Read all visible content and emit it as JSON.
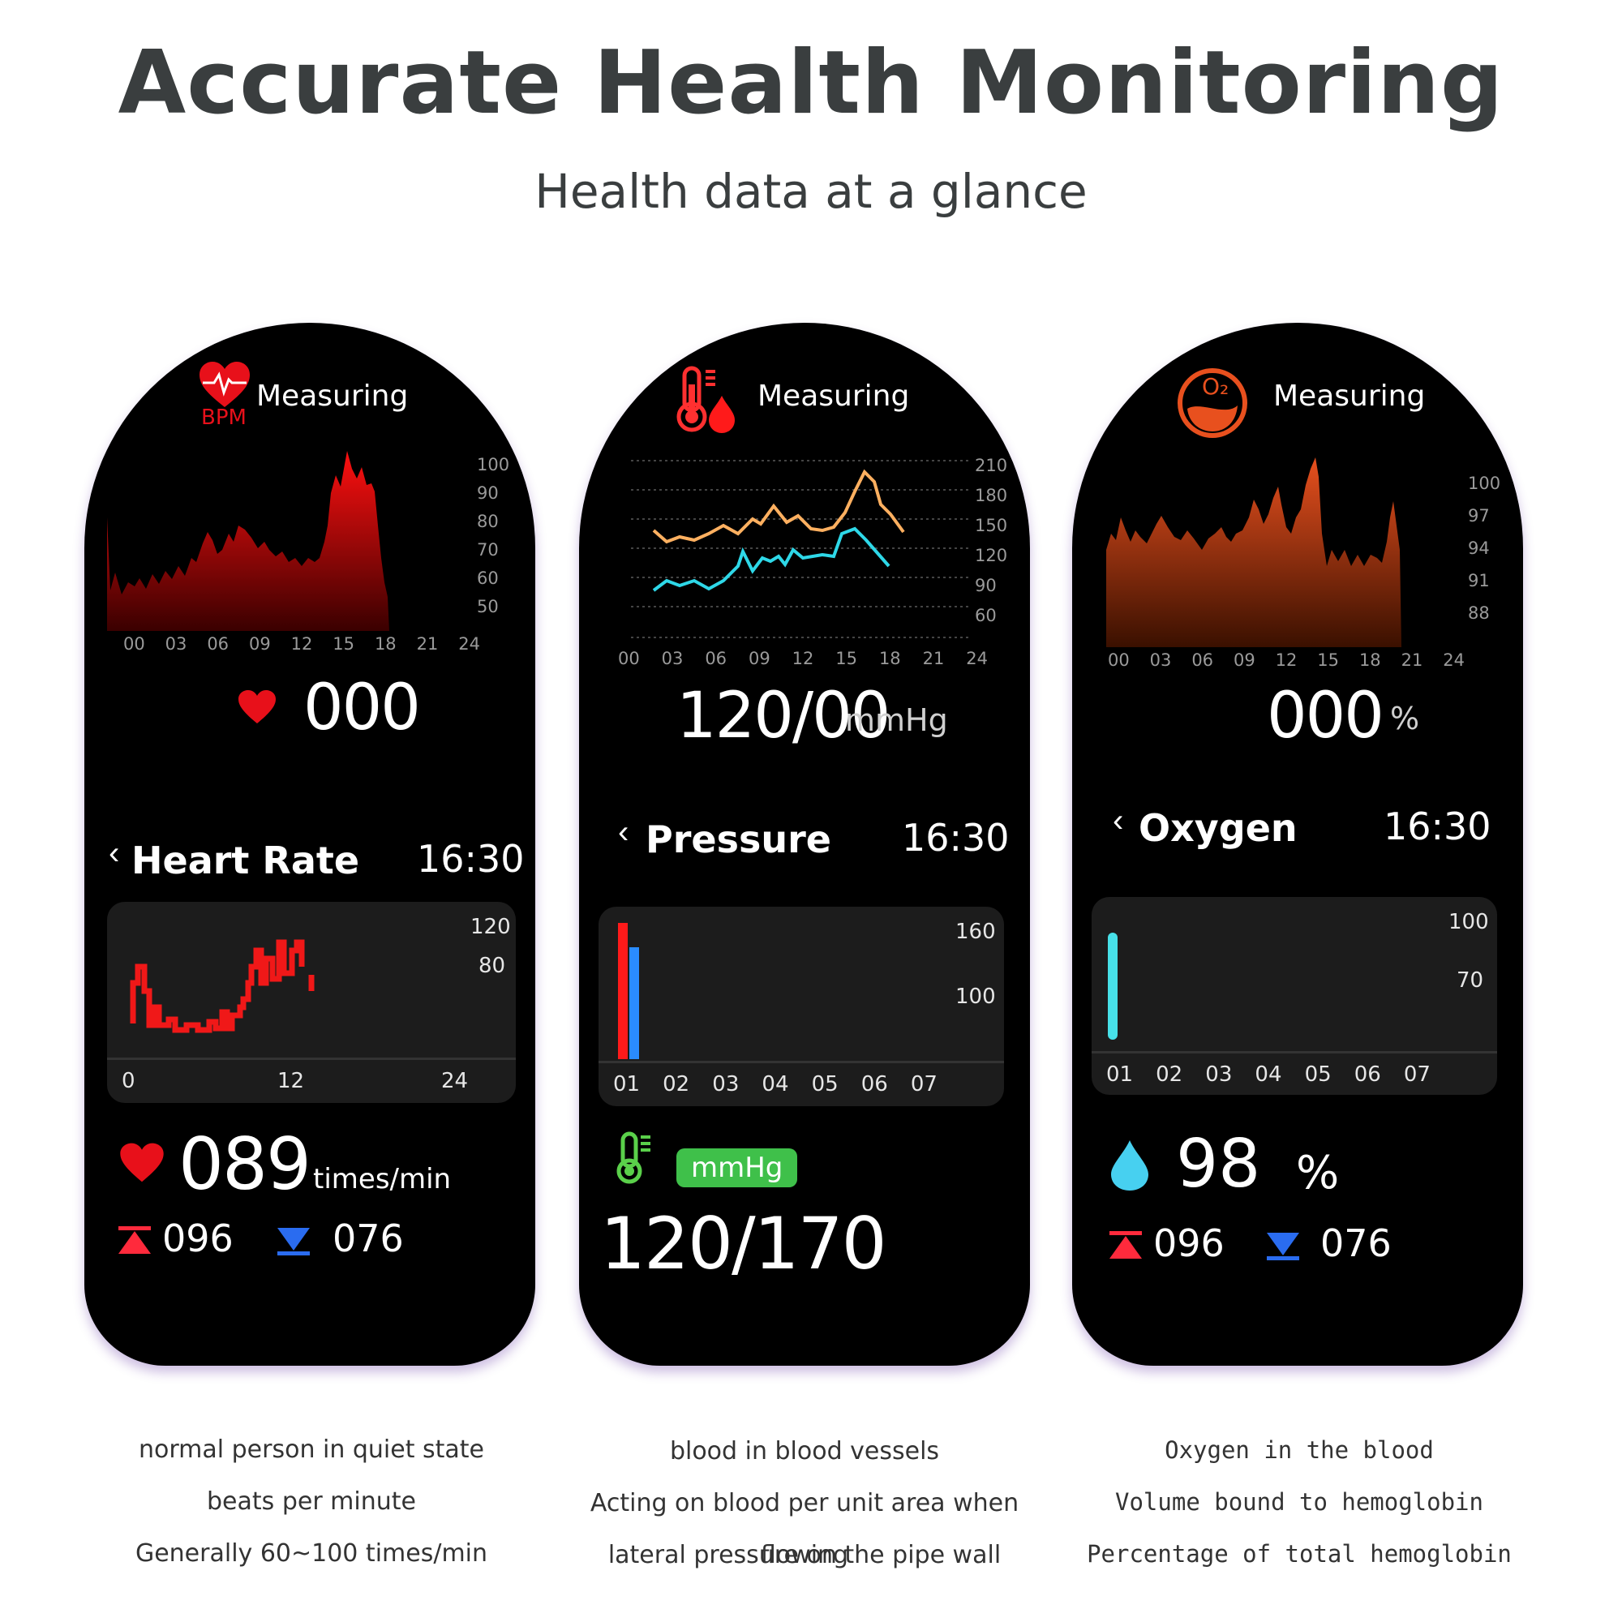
{
  "header": {
    "title": "Accurate Health Monitoring",
    "subtitle": "Health data at a glance"
  },
  "colors": {
    "heart_red": "#e8101a",
    "bp_systolic": "#ffb060",
    "bp_diastolic": "#2ed8e8",
    "oxygen_orange": "#e8501e",
    "oxygen_bar": "#47e0e8",
    "badge_green": "#3fc04a",
    "high_arrow": "#ff2a3c",
    "low_arrow": "#2a6cf0"
  },
  "heart": {
    "measuring": "Measuring",
    "icon": "heart-bpm-icon",
    "icon_text": "BPM",
    "chart_ticks_y": [
      "100",
      "90",
      "80",
      "70",
      "60",
      "50"
    ],
    "chart_ticks_x": [
      "00",
      "03",
      "06",
      "09",
      "12",
      "15",
      "18",
      "21",
      "24"
    ],
    "reading": "000",
    "back_icon": "chevron-left-icon",
    "page_title": "Heart Rate",
    "time": "16:30",
    "card_ticks_y": [
      "120",
      "80"
    ],
    "card_ticks_x": [
      "0",
      "12",
      "24"
    ],
    "value": "089",
    "unit": "times/min",
    "high": "096",
    "low": "076",
    "caption": [
      "normal person in quiet state",
      "beats per minute",
      "Generally 60~100 times/min"
    ]
  },
  "pressure": {
    "measuring": "Measuring",
    "icon": "thermometer-drop-icon",
    "chart_ticks_y": [
      "210",
      "180",
      "150",
      "120",
      "90",
      "60"
    ],
    "chart_ticks_x": [
      "00",
      "03",
      "06",
      "09",
      "12",
      "15",
      "18",
      "21",
      "24"
    ],
    "reading": "120/00",
    "reading_unit": "mmHg",
    "back_icon": "chevron-left-icon",
    "page_title": "Pressure",
    "time": "16:30",
    "card_ticks_y": [
      "160",
      "100"
    ],
    "card_ticks_x": [
      "01",
      "02",
      "03",
      "04",
      "05",
      "06",
      "07"
    ],
    "badge": "mmHg",
    "value": "120/170",
    "caption": [
      "blood in blood vessels",
      "Acting on blood per unit area when flowing",
      "lateral pressure on the pipe wall"
    ]
  },
  "oxygen": {
    "measuring": "Measuring",
    "icon": "oxygen-o2-icon",
    "icon_text": "O₂",
    "chart_ticks_y": [
      "100",
      "97",
      "94",
      "91",
      "88"
    ],
    "chart_ticks_x": [
      "00",
      "03",
      "06",
      "09",
      "12",
      "15",
      "18",
      "21",
      "24"
    ],
    "reading": "000",
    "reading_unit": "%",
    "back_icon": "chevron-left-icon",
    "page_title": "Oxygen",
    "time": "16:30",
    "card_ticks_y": [
      "100",
      "70"
    ],
    "card_ticks_x": [
      "01",
      "02",
      "03",
      "04",
      "05",
      "06",
      "07"
    ],
    "value": "98",
    "unit": "%",
    "high": "096",
    "low": "076",
    "caption": [
      "Oxygen in the blood",
      "Volume bound to hemoglobin",
      "Percentage of total hemoglobin"
    ]
  }
}
